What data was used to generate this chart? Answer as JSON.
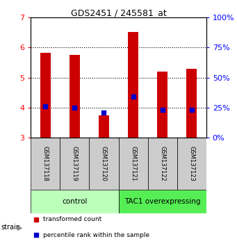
{
  "title": "GDS2451 / 245581_at",
  "samples": [
    "GSM137118",
    "GSM137119",
    "GSM137120",
    "GSM137121",
    "GSM137122",
    "GSM137123"
  ],
  "transformed_counts": [
    5.82,
    5.75,
    3.75,
    6.5,
    5.2,
    5.3
  ],
  "percentile_ranks": [
    26,
    25,
    21,
    34,
    23,
    23
  ],
  "ylim_left": [
    3,
    7
  ],
  "ylim_right": [
    0,
    100
  ],
  "yticks_left": [
    3,
    4,
    5,
    6,
    7
  ],
  "yticks_right": [
    0,
    25,
    50,
    75,
    100
  ],
  "groups": [
    {
      "label": "control",
      "start": 0,
      "end": 3,
      "color": "#bbffbb"
    },
    {
      "label": "TAC1 overexpressing",
      "start": 3,
      "end": 6,
      "color": "#55ee55"
    }
  ],
  "bar_color": "#cc0000",
  "dot_color": "#0000cc",
  "baseline": 3,
  "bar_width": 0.35,
  "dot_size": 25,
  "sample_box_color": "#cccccc",
  "legend_items": [
    {
      "label": "transformed count",
      "color": "#cc0000"
    },
    {
      "label": "percentile rank within the sample",
      "color": "#0000cc"
    }
  ],
  "strain_arrow_color": "#888888"
}
